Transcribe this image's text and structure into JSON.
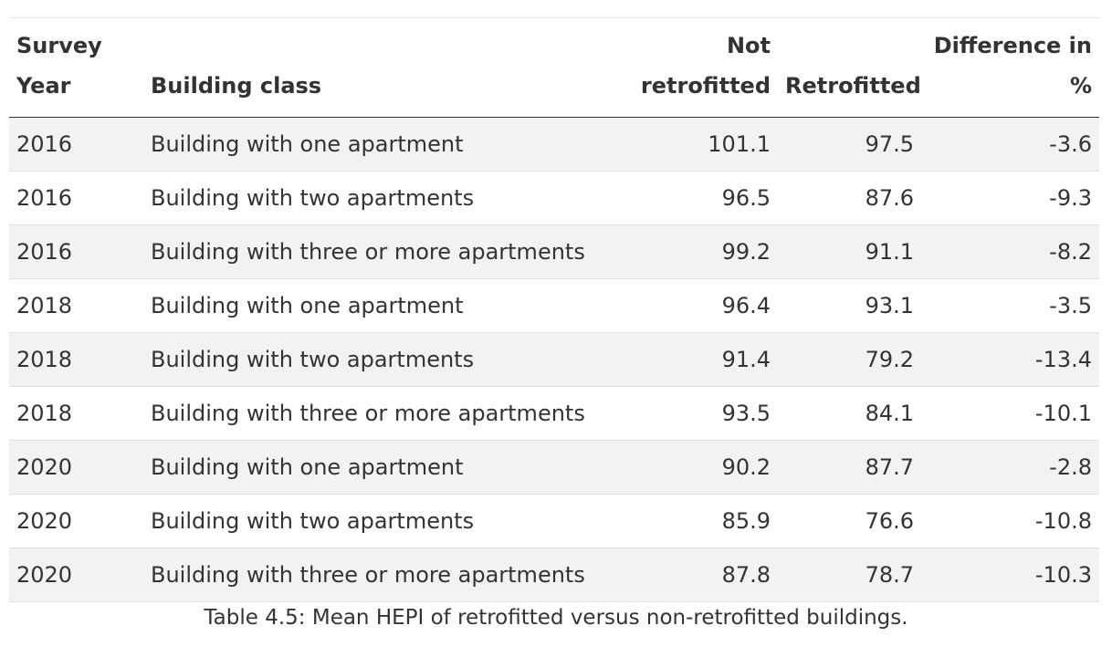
{
  "table": {
    "headers": {
      "year": [
        "Survey",
        "Year"
      ],
      "building_class": "Building class",
      "not_retrofitted": [
        "Not",
        "retrofitted"
      ],
      "retrofitted": "Retrofitted",
      "difference": [
        "Difference in",
        "%"
      ]
    },
    "rows": [
      {
        "year": "2016",
        "building_class": "Building with one apartment",
        "not_retrofitted": "101.1",
        "retrofitted": "97.5",
        "difference": "-3.6"
      },
      {
        "year": "2016",
        "building_class": "Building with two apartments",
        "not_retrofitted": "96.5",
        "retrofitted": "87.6",
        "difference": "-9.3"
      },
      {
        "year": "2016",
        "building_class": "Building with three or more apartments",
        "not_retrofitted": "99.2",
        "retrofitted": "91.1",
        "difference": "-8.2"
      },
      {
        "year": "2018",
        "building_class": "Building with one apartment",
        "not_retrofitted": "96.4",
        "retrofitted": "93.1",
        "difference": "-3.5"
      },
      {
        "year": "2018",
        "building_class": "Building with two apartments",
        "not_retrofitted": "91.4",
        "retrofitted": "79.2",
        "difference": "-13.4"
      },
      {
        "year": "2018",
        "building_class": "Building with three or more apartments",
        "not_retrofitted": "93.5",
        "retrofitted": "84.1",
        "difference": "-10.1"
      },
      {
        "year": "2020",
        "building_class": "Building with one apartment",
        "not_retrofitted": "90.2",
        "retrofitted": "87.7",
        "difference": "-2.8"
      },
      {
        "year": "2020",
        "building_class": "Building with two apartments",
        "not_retrofitted": "85.9",
        "retrofitted": "76.6",
        "difference": "-10.8"
      },
      {
        "year": "2020",
        "building_class": "Building with three or more apartments",
        "not_retrofitted": "87.8",
        "retrofitted": "78.7",
        "difference": "-10.3"
      }
    ],
    "caption": "Table 4.5: Mean HEPI of retrofitted versus non-retrofitted buildings."
  }
}
